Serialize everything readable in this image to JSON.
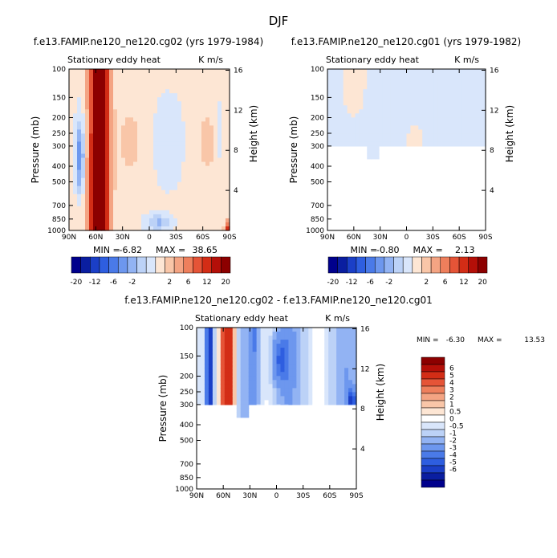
{
  "figure_title": "DJF",
  "colors": {
    "levels_top": [
      "#00008c",
      "#0a1ea0",
      "#1b3fc7",
      "#2e5ee0",
      "#4a7ae8",
      "#6d97ee",
      "#92b3f3",
      "#bcd2f7",
      "#d9e6fb",
      "#fde6d4",
      "#f9c6a8",
      "#f4a483",
      "#ee7f5c",
      "#e55437",
      "#d32d16",
      "#b40f08",
      "#8c0000"
    ],
    "levels_diff": [
      "#00008c",
      "#0a1ea0",
      "#1b3fc7",
      "#2e5ee0",
      "#4a7ae8",
      "#6d97ee",
      "#92b3f3",
      "#bcd2f7",
      "#d9e6fb",
      "#ffffff",
      "#fde6d4",
      "#f9c6a8",
      "#f4a483",
      "#ee7f5c",
      "#e55437",
      "#d32d16",
      "#b40f08",
      "#8c0000"
    ]
  },
  "chart_data": [
    {
      "type": "heatmap",
      "title": "f.e13.FAMIP.ne120_ne120.cg02 (yrs 1979-1984)",
      "subtitle_left": "Stationary eddy heat",
      "subtitle_right": "K m/s",
      "ylabel": "Pressure (mb)",
      "ylabel_right": "Height (km)",
      "xticks": [
        "90N",
        "60N",
        "30N",
        "0",
        "30S",
        "60S",
        "90S"
      ],
      "yticks": [
        "100",
        "150",
        "200",
        "250",
        "300",
        "400",
        "500",
        "700",
        "850",
        "1000"
      ],
      "height_ticks": [
        "16",
        "12",
        "8",
        "4"
      ],
      "xlim": [
        90,
        -90
      ],
      "ylim": [
        1000,
        100
      ],
      "valid_pressure_max": 1000,
      "stats": {
        "min_label": "MIN =",
        "min": "-6.82",
        "max_label": "MAX =",
        "max": "38.65"
      },
      "colorbar_ticks": [
        "-20",
        "-12",
        "-6",
        "-2",
        "2",
        "6",
        "12",
        "20"
      ]
    },
    {
      "type": "heatmap",
      "title": "f.e13.FAMIP.ne120_ne120.cg01 (yrs 1979-1982)",
      "subtitle_left": "Stationary eddy heat",
      "subtitle_right": "K m/s",
      "ylabel": "Pressure (mb)",
      "ylabel_right": "Height (km)",
      "xticks": [
        "90N",
        "60N",
        "30N",
        "0",
        "30S",
        "60S",
        "90S"
      ],
      "yticks": [
        "100",
        "150",
        "200",
        "250",
        "300",
        "400",
        "500",
        "700",
        "850",
        "1000"
      ],
      "height_ticks": [
        "16",
        "12",
        "8",
        "4"
      ],
      "xlim": [
        90,
        -90
      ],
      "ylim": [
        1000,
        100
      ],
      "valid_pressure_max": 300,
      "stats": {
        "min_label": "MIN =",
        "min": "-0.80",
        "max_label": "MAX =",
        "max": "2.13"
      },
      "colorbar_ticks": [
        "-20",
        "-12",
        "-6",
        "-2",
        "2",
        "6",
        "12",
        "20"
      ]
    },
    {
      "type": "heatmap",
      "title": "f.e13.FAMIP.ne120_ne120.cg02 - f.e13.FAMIP.ne120_ne120.cg01",
      "subtitle_left": "Stationary eddy heat",
      "subtitle_right": "K m/s",
      "ylabel": "Pressure (mb)",
      "ylabel_right": "Height (km)",
      "xticks": [
        "90N",
        "60N",
        "30N",
        "0",
        "30S",
        "60S",
        "90S"
      ],
      "yticks": [
        "100",
        "150",
        "200",
        "250",
        "300",
        "400",
        "500",
        "700",
        "850",
        "1000"
      ],
      "height_ticks": [
        "16",
        "12",
        "8",
        "4"
      ],
      "xlim": [
        90,
        -90
      ],
      "ylim": [
        1000,
        100
      ],
      "valid_pressure_max": 300,
      "stats": {
        "min_label": "MIN =",
        "min": "-6.30",
        "max_label": "MAX =",
        "max": "13.53"
      },
      "colorbar_ticks": [
        "6",
        "5",
        "4",
        "3",
        "2",
        "1",
        "0.5",
        "0",
        "-0.5",
        "-1",
        "-2",
        "-3",
        "-4",
        "-5",
        "-6"
      ]
    }
  ]
}
